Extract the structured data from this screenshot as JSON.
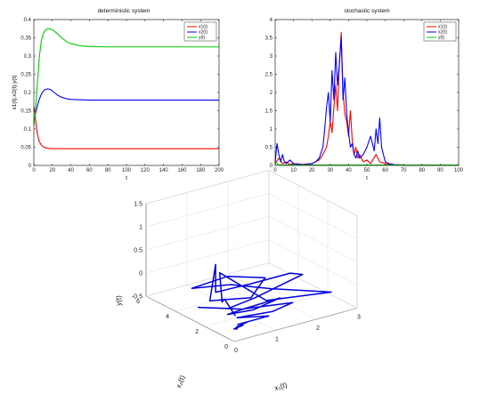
{
  "chart_data": [
    {
      "type": "line",
      "title": "deterministic system",
      "xlabel": "t",
      "ylabel": "x1(t),x2(t),y(t)",
      "xlim": [
        0,
        200
      ],
      "ylim": [
        0,
        0.4
      ],
      "x_ticks": [
        "0",
        "20",
        "40",
        "60",
        "80",
        "100",
        "120",
        "140",
        "160",
        "180",
        "200"
      ],
      "y_ticks": [
        "0",
        "0.05",
        "0.1",
        "0.15",
        "0.2",
        "0.25",
        "0.3",
        "0.35",
        "0.4"
      ],
      "legend_position": "top-right",
      "series": [
        {
          "name": "x1(t)",
          "color": "#ff0000",
          "x": [
            0,
            1,
            2,
            3,
            4,
            5,
            6,
            8,
            10,
            12,
            15,
            20,
            25,
            30,
            40,
            60,
            80,
            100,
            150,
            200
          ],
          "y": [
            0.16,
            0.145,
            0.122,
            0.1,
            0.085,
            0.073,
            0.065,
            0.056,
            0.051,
            0.049,
            0.047,
            0.046,
            0.046,
            0.046,
            0.046,
            0.046,
            0.046,
            0.046,
            0.046,
            0.046
          ]
        },
        {
          "name": "x2(t)",
          "color": "#0000ff",
          "x": [
            0,
            2,
            4,
            6,
            8,
            10,
            12,
            15,
            18,
            22,
            26,
            30,
            35,
            40,
            50,
            60,
            80,
            100,
            150,
            200
          ],
          "y": [
            0.12,
            0.145,
            0.165,
            0.182,
            0.195,
            0.203,
            0.208,
            0.21,
            0.208,
            0.2,
            0.192,
            0.187,
            0.183,
            0.181,
            0.18,
            0.179,
            0.179,
            0.179,
            0.179,
            0.179
          ]
        },
        {
          "name": "y(t)",
          "color": "#00cc00",
          "x": [
            0,
            2,
            4,
            6,
            8,
            10,
            12,
            15,
            18,
            20,
            25,
            30,
            35,
            40,
            50,
            60,
            80,
            100,
            150,
            200
          ],
          "y": [
            0.11,
            0.16,
            0.23,
            0.3,
            0.34,
            0.36,
            0.37,
            0.375,
            0.374,
            0.372,
            0.362,
            0.35,
            0.34,
            0.334,
            0.328,
            0.326,
            0.325,
            0.325,
            0.325,
            0.325
          ]
        }
      ]
    },
    {
      "type": "line",
      "title": "stochastic system",
      "xlabel": "t",
      "ylabel": "",
      "xlim": [
        0,
        100
      ],
      "ylim": [
        0,
        4
      ],
      "x_ticks": [
        "0",
        "10",
        "20",
        "30",
        "40",
        "50",
        "60",
        "70",
        "80",
        "90",
        "100"
      ],
      "y_ticks": [
        "0",
        "0.5",
        "1",
        "1.5",
        "2",
        "2.5",
        "3",
        "3.5",
        "4"
      ],
      "legend_position": "top-right",
      "series": [
        {
          "name": "x1(t)",
          "color": "#ff0000",
          "x": [
            0,
            2,
            4,
            6,
            8,
            10,
            15,
            20,
            24,
            26,
            28,
            29,
            30,
            31,
            32,
            33,
            34,
            35,
            36,
            37,
            38,
            39,
            40,
            41,
            42,
            43,
            44,
            45,
            46,
            48,
            50,
            52,
            55,
            57,
            60,
            65,
            70,
            80,
            90,
            100
          ],
          "y": [
            0.05,
            0.2,
            0.05,
            0.1,
            0.02,
            0.05,
            0.03,
            0.05,
            0.15,
            0.3,
            0.5,
            0.8,
            1.2,
            0.9,
            1.6,
            2.2,
            1.5,
            2.8,
            3.65,
            2.0,
            1.4,
            1.2,
            0.8,
            1.5,
            0.7,
            0.3,
            0.5,
            0.2,
            0.3,
            0.1,
            0.15,
            0.05,
            0.3,
            0.1,
            0.05,
            0.02,
            0.01,
            0.01,
            0.01,
            0.01
          ]
        },
        {
          "name": "x2(t)",
          "color": "#0000ff",
          "x": [
            0,
            1,
            2,
            3,
            4,
            5,
            6,
            8,
            10,
            15,
            20,
            22,
            24,
            26,
            27,
            28,
            29,
            30,
            31,
            32,
            33,
            34,
            35,
            36,
            37,
            38,
            39,
            40,
            41,
            42,
            43,
            44,
            45,
            46,
            48,
            50,
            52,
            54,
            55,
            56,
            57,
            58,
            59,
            60,
            62,
            65,
            70,
            80,
            90,
            100
          ],
          "y": [
            0.1,
            0.6,
            0.3,
            0.1,
            0.3,
            0.1,
            0.05,
            0.15,
            0.05,
            0.02,
            0.05,
            0.1,
            0.2,
            0.5,
            1.0,
            1.6,
            2.0,
            1.2,
            2.6,
            1.8,
            3.1,
            2.2,
            2.8,
            3.5,
            1.8,
            2.4,
            1.4,
            0.9,
            0.5,
            0.6,
            0.3,
            0.2,
            0.4,
            0.2,
            0.3,
            0.5,
            0.8,
            0.4,
            1.0,
            0.6,
            1.3,
            0.5,
            0.3,
            0.1,
            0.05,
            0.02,
            0.01,
            0.01,
            0.01,
            0.01
          ]
        },
        {
          "name": "y(t)",
          "color": "#00cc00",
          "x": [
            0,
            1,
            2,
            5,
            10,
            20,
            30,
            40,
            50,
            60,
            70,
            80,
            90,
            100
          ],
          "y": [
            0.1,
            0.05,
            0.02,
            0.01,
            0.01,
            0.01,
            0.01,
            0.01,
            0.01,
            0.01,
            0.01,
            0.01,
            0.01,
            0.01
          ]
        }
      ]
    },
    {
      "type": "line",
      "title": "",
      "xlabel": "x₁(t)",
      "ylabel": "x₂(t)",
      "zlabel": "y(t)",
      "xlim": [
        0,
        3
      ],
      "ylim": [
        0,
        6
      ],
      "zlim": [
        -0.5,
        1.5
      ],
      "x_ticks": [
        "0",
        "1",
        "2",
        "3"
      ],
      "y_ticks": [
        "0",
        "2",
        "4",
        "6"
      ],
      "z_ticks": [
        "-0.5",
        "0",
        "0.5",
        "1",
        "1.5"
      ],
      "grid": true,
      "series": [
        {
          "name": "",
          "color": "#0000dd",
          "points": [
            [
              0.1,
              0.2,
              0.0
            ],
            [
              0.3,
              1.5,
              0.1
            ],
            [
              0.6,
              2.5,
              -0.2
            ],
            [
              0.9,
              3.5,
              0.2
            ],
            [
              1.5,
              2.0,
              -0.3
            ],
            [
              2.8,
              1.2,
              -0.3
            ],
            [
              1.8,
              2.5,
              -0.2
            ],
            [
              1.0,
              3.0,
              0.0
            ],
            [
              0.4,
              4.0,
              -0.1
            ],
            [
              1.2,
              3.8,
              0.0
            ],
            [
              1.9,
              3.2,
              -0.1
            ],
            [
              1.2,
              2.2,
              -0.2
            ],
            [
              0.3,
              2.5,
              -0.1
            ],
            [
              0.8,
              3.5,
              0.4
            ],
            [
              0.8,
              3.5,
              -0.2
            ],
            [
              1.5,
              3.0,
              -0.1
            ],
            [
              2.3,
              2.6,
              0.0
            ],
            [
              2.6,
              2.6,
              -0.1
            ],
            [
              1.4,
              2.5,
              -0.3
            ],
            [
              0.5,
              1.8,
              -0.2
            ],
            [
              0.2,
              3.0,
              -0.3
            ],
            [
              1.0,
              2.2,
              -0.4
            ],
            [
              1.8,
              1.9,
              -0.3
            ],
            [
              1.0,
              1.5,
              -0.3
            ],
            [
              0.3,
              1.3,
              -0.2
            ],
            [
              0.9,
              1.8,
              -0.3
            ],
            [
              2.0,
              1.6,
              -0.4
            ],
            [
              1.4,
              1.3,
              -0.4
            ],
            [
              0.5,
              1.2,
              -0.3
            ],
            [
              1.2,
              1.0,
              -0.4
            ],
            [
              0.3,
              0.6,
              -0.3
            ],
            [
              0.7,
              1.0,
              -0.4
            ],
            [
              0.2,
              0.4,
              -0.3
            ],
            [
              0.5,
              0.8,
              -0.4
            ],
            [
              0.1,
              0.3,
              -0.3
            ],
            [
              0.3,
              0.6,
              -0.4
            ]
          ]
        }
      ]
    }
  ]
}
